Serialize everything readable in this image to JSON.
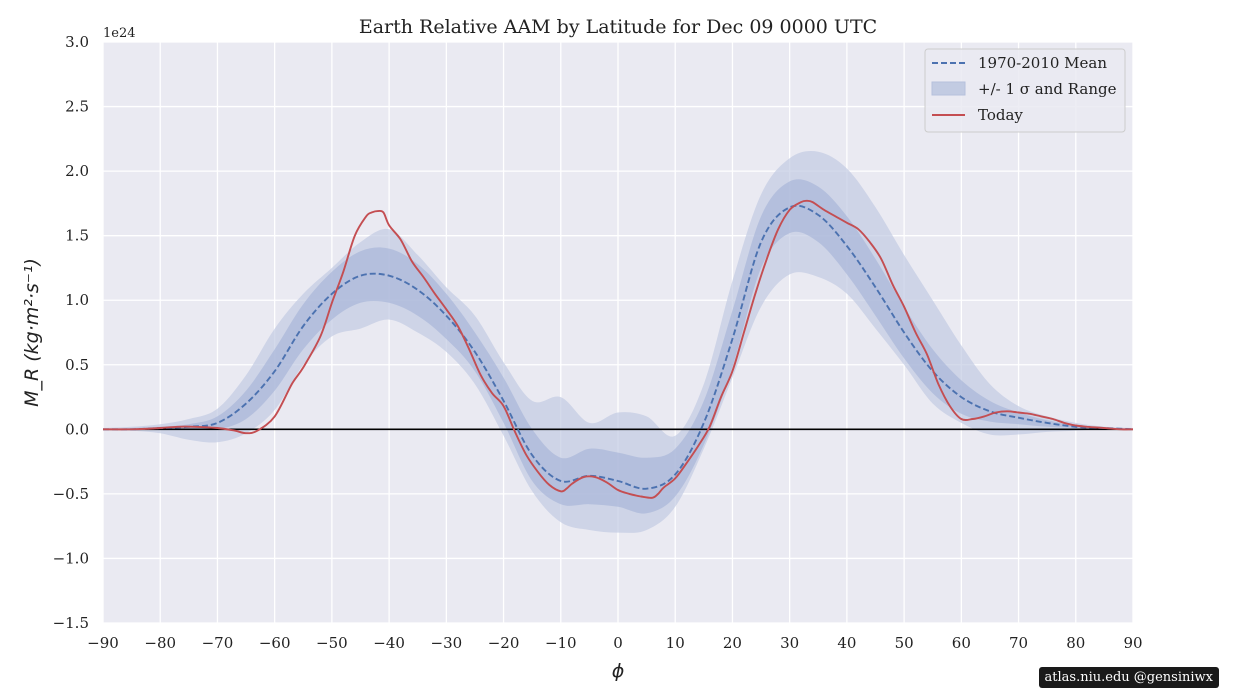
{
  "chart_data": {
    "type": "line",
    "title": "Earth Relative AAM by Latitude for Dec 09 0000 UTC",
    "xlabel": "ϕ",
    "ylabel": "M_R (kg·m²·s⁻¹)",
    "y_offset_label": "1e24",
    "xlim": [
      -90,
      90
    ],
    "ylim": [
      -1.5,
      3.0
    ],
    "x_ticks": [
      -90,
      -80,
      -70,
      -60,
      -50,
      -40,
      -30,
      -20,
      -10,
      0,
      10,
      20,
      30,
      40,
      50,
      60,
      70,
      80,
      90
    ],
    "x_tick_labels": [
      "−90",
      "−80",
      "−70",
      "−60",
      "−50",
      "−40",
      "−30",
      "−20",
      "−10",
      "0",
      "10",
      "20",
      "30",
      "40",
      "50",
      "60",
      "70",
      "80",
      "90"
    ],
    "y_ticks": [
      -1.5,
      -1.0,
      -0.5,
      0.0,
      0.5,
      1.0,
      1.5,
      2.0,
      2.5,
      3.0
    ],
    "y_tick_labels": [
      "−1.5",
      "−1.0",
      "−0.5",
      "0.0",
      "0.5",
      "1.0",
      "1.5",
      "2.0",
      "2.5",
      "3.0"
    ],
    "grid": true,
    "legend_position": "top-right",
    "series": [
      {
        "name": "1970-2010 Mean",
        "style": "dashed",
        "color": "#4c72b0",
        "x": [
          -90,
          -85,
          -80,
          -75,
          -70,
          -65,
          -60,
          -55,
          -50,
          -45,
          -40,
          -35,
          -30,
          -25,
          -20,
          -15,
          -10,
          -5,
          0,
          5,
          10,
          15,
          20,
          25,
          30,
          35,
          40,
          45,
          50,
          55,
          60,
          65,
          70,
          75,
          80,
          85,
          90
        ],
        "y": [
          0,
          0,
          0.01,
          0.02,
          0.05,
          0.2,
          0.45,
          0.8,
          1.05,
          1.19,
          1.19,
          1.08,
          0.88,
          0.6,
          0.22,
          -0.2,
          -0.4,
          -0.36,
          -0.4,
          -0.46,
          -0.35,
          0.05,
          0.7,
          1.45,
          1.72,
          1.66,
          1.42,
          1.1,
          0.75,
          0.45,
          0.25,
          0.14,
          0.09,
          0.05,
          0.02,
          0.01,
          0
        ]
      },
      {
        "name": "Today",
        "style": "solid",
        "color": "#c44e52",
        "x": [
          -90,
          -85,
          -80,
          -77,
          -74,
          -70,
          -67,
          -65,
          -63,
          -60,
          -57,
          -55,
          -52,
          -50,
          -48,
          -46,
          -44,
          -43,
          -42,
          -41,
          -40,
          -38,
          -36,
          -34,
          -32,
          -30,
          -28,
          -26,
          -24,
          -22,
          -20,
          -18,
          -16,
          -14,
          -12,
          -10,
          -9,
          -8,
          -6,
          -4,
          -2,
          0,
          2,
          4,
          6,
          7,
          8,
          10,
          12,
          14,
          16,
          18,
          20,
          22,
          24,
          26,
          28,
          30,
          32,
          33,
          34,
          36,
          38,
          40,
          42,
          44,
          46,
          48,
          50,
          52,
          54,
          56,
          58,
          60,
          62,
          64,
          66,
          68,
          70,
          72,
          74,
          76,
          78,
          80,
          82,
          85,
          88,
          90
        ],
        "y": [
          0,
          0,
          0.01,
          0.02,
          0.02,
          0.01,
          -0.01,
          -0.03,
          -0.01,
          0.1,
          0.35,
          0.48,
          0.72,
          0.98,
          1.22,
          1.5,
          1.65,
          1.68,
          1.69,
          1.68,
          1.58,
          1.47,
          1.3,
          1.18,
          1.05,
          0.93,
          0.8,
          0.62,
          0.42,
          0.28,
          0.18,
          -0.02,
          -0.2,
          -0.33,
          -0.43,
          -0.48,
          -0.46,
          -0.42,
          -0.37,
          -0.37,
          -0.41,
          -0.47,
          -0.5,
          -0.52,
          -0.53,
          -0.5,
          -0.45,
          -0.38,
          -0.26,
          -0.13,
          0.02,
          0.25,
          0.45,
          0.75,
          1.05,
          1.32,
          1.55,
          1.7,
          1.76,
          1.77,
          1.76,
          1.7,
          1.65,
          1.6,
          1.55,
          1.45,
          1.32,
          1.12,
          0.95,
          0.75,
          0.58,
          0.35,
          0.18,
          0.08,
          0.08,
          0.1,
          0.13,
          0.14,
          0.13,
          0.12,
          0.1,
          0.08,
          0.05,
          0.03,
          0.02,
          0.01,
          0,
          0
        ]
      }
    ],
    "bands": [
      {
        "name": "+/- 1 σ and Range",
        "kind": "range",
        "color": "#c2cbe2",
        "x": [
          -90,
          -85,
          -80,
          -75,
          -70,
          -65,
          -60,
          -55,
          -50,
          -45,
          -40,
          -35,
          -30,
          -25,
          -20,
          -15,
          -10,
          -5,
          0,
          5,
          10,
          15,
          20,
          25,
          30,
          35,
          40,
          45,
          50,
          55,
          60,
          65,
          70,
          75,
          80,
          85,
          90
        ],
        "upper": [
          0.01,
          0.02,
          0.04,
          0.08,
          0.16,
          0.42,
          0.78,
          1.05,
          1.25,
          1.45,
          1.55,
          1.35,
          1.1,
          0.88,
          0.52,
          0.22,
          0.25,
          0.05,
          0.13,
          0.1,
          -0.05,
          0.35,
          1.15,
          1.82,
          2.1,
          2.15,
          2.02,
          1.72,
          1.35,
          1.0,
          0.65,
          0.35,
          0.18,
          0.1,
          0.05,
          0.02,
          0.01
        ],
        "lower": [
          0,
          -0.01,
          -0.03,
          -0.08,
          -0.1,
          -0.03,
          0.15,
          0.5,
          0.72,
          0.78,
          0.85,
          0.75,
          0.6,
          0.35,
          -0.05,
          -0.48,
          -0.72,
          -0.78,
          -0.8,
          -0.78,
          -0.6,
          -0.15,
          0.4,
          0.95,
          1.2,
          1.18,
          1.05,
          0.78,
          0.5,
          0.2,
          0.05,
          -0.04,
          -0.04,
          -0.02,
          -0.01,
          0,
          0
        ]
      },
      {
        "name": "+/- 1 σ",
        "kind": "sigma",
        "color": "#a9b7d9",
        "x": [
          -90,
          -85,
          -80,
          -75,
          -70,
          -65,
          -60,
          -55,
          -50,
          -45,
          -40,
          -35,
          -30,
          -25,
          -20,
          -15,
          -10,
          -5,
          0,
          5,
          10,
          15,
          20,
          25,
          30,
          35,
          40,
          45,
          50,
          55,
          60,
          65,
          70,
          75,
          80,
          85,
          90
        ],
        "upper": [
          0,
          0.01,
          0.02,
          0.04,
          0.1,
          0.3,
          0.62,
          0.97,
          1.22,
          1.38,
          1.4,
          1.28,
          1.05,
          0.75,
          0.4,
          0.0,
          -0.22,
          -0.15,
          -0.18,
          -0.22,
          -0.15,
          0.22,
          0.92,
          1.65,
          1.92,
          1.88,
          1.65,
          1.32,
          0.95,
          0.62,
          0.38,
          0.22,
          0.13,
          0.07,
          0.03,
          0.01,
          0
        ],
        "lower": [
          0,
          0,
          0,
          0,
          0,
          0.08,
          0.3,
          0.62,
          0.85,
          0.98,
          0.98,
          0.88,
          0.7,
          0.45,
          0.05,
          -0.4,
          -0.58,
          -0.58,
          -0.6,
          -0.65,
          -0.52,
          -0.12,
          0.48,
          1.25,
          1.52,
          1.45,
          1.2,
          0.88,
          0.55,
          0.28,
          0.12,
          0.06,
          0.04,
          0.02,
          0.01,
          0,
          0
        ]
      }
    ],
    "legend": [
      {
        "label": "1970-2010 Mean",
        "kind": "dashed",
        "color": "#4c72b0"
      },
      {
        "label": "+/- 1 σ and Range",
        "kind": "patch",
        "color": "#c2cbe2"
      },
      {
        "label": "Today",
        "kind": "solid",
        "color": "#c44e52"
      }
    ],
    "colors": {
      "axes_background": "#eaeaf2",
      "grid": "#ffffff",
      "zero_line": "#000000"
    }
  },
  "credit": "atlas.niu.edu  @gensiniwx"
}
